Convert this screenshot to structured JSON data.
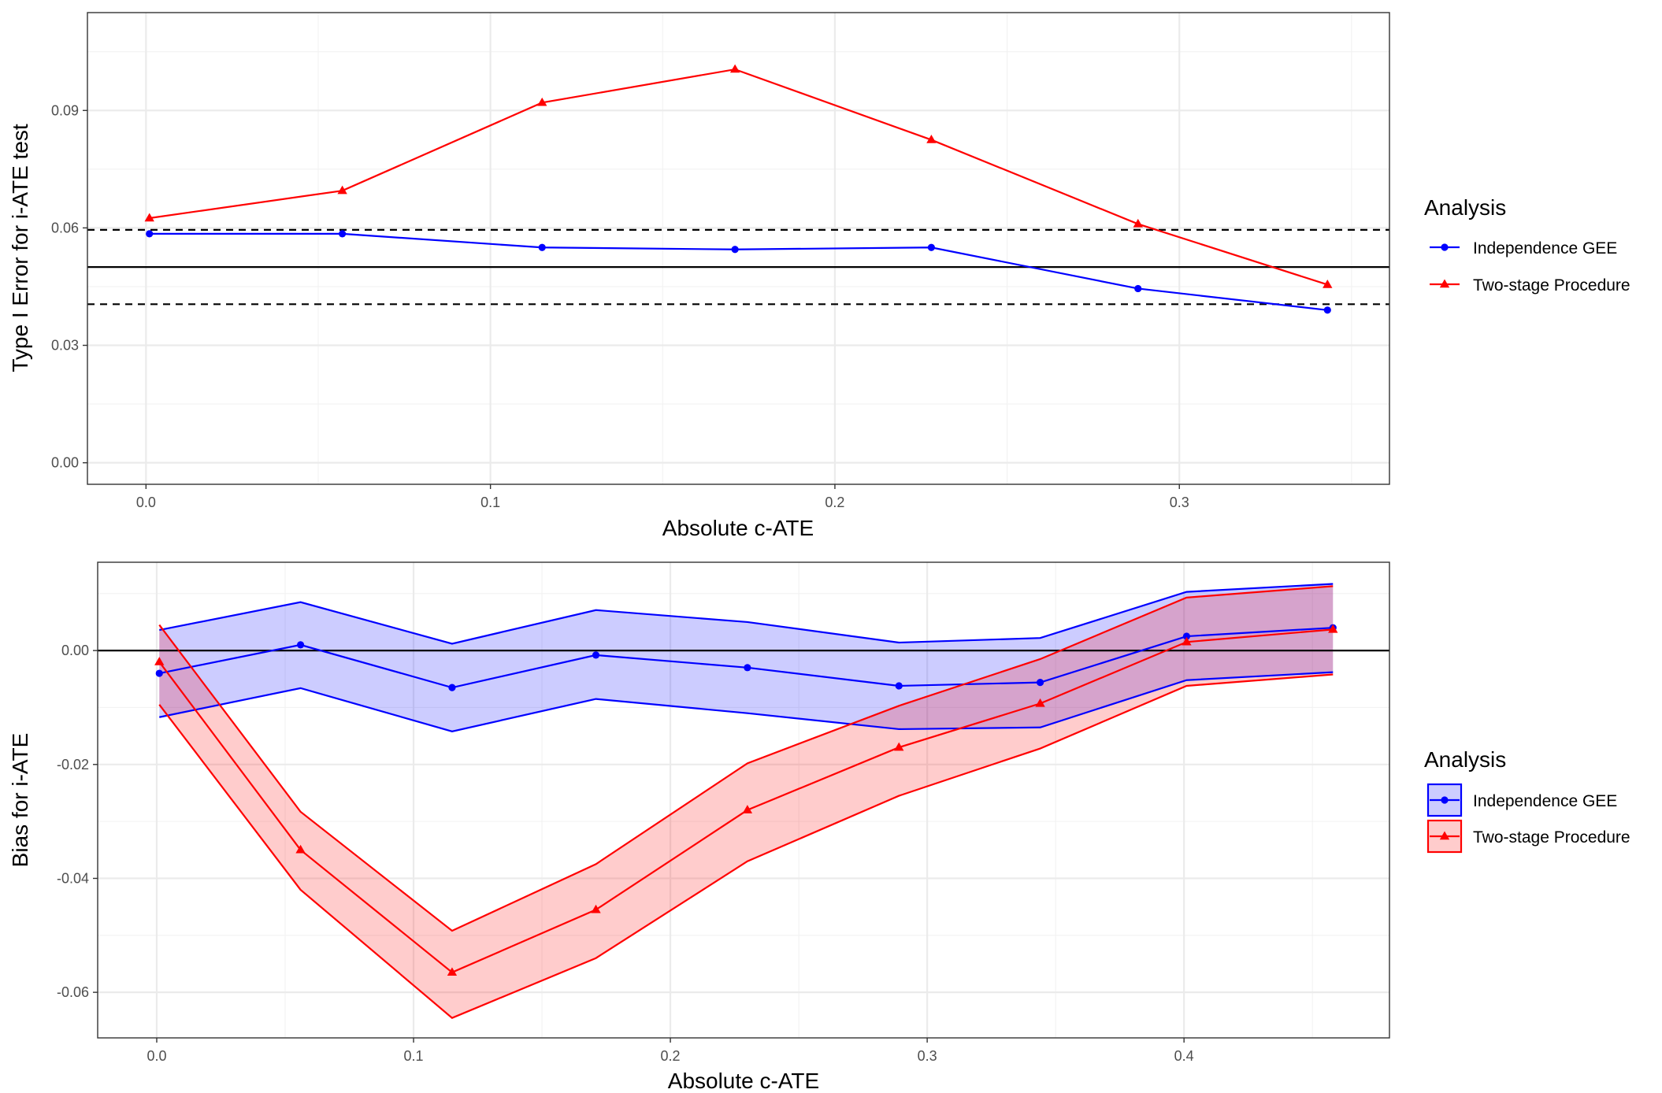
{
  "colors": {
    "independence": "#0000ff",
    "two_stage": "#ff0000",
    "reference": "#000000"
  },
  "chart_data": [
    {
      "type": "line",
      "xlabel": "Absolute c-ATE",
      "ylabel": "Type I Error for i-ATE test",
      "xlim": [
        -0.017,
        0.361
      ],
      "ylim": [
        -0.0055,
        0.115
      ],
      "x_ticks": [
        0.0,
        0.1,
        0.2,
        0.3
      ],
      "x_tick_labels": [
        "0.0",
        "0.1",
        "0.2",
        "0.3"
      ],
      "y_ticks": [
        0.0,
        0.03,
        0.06,
        0.09
      ],
      "y_tick_labels": [
        "0.00",
        "0.03",
        "0.06",
        "0.09"
      ],
      "reference_lines": [
        {
          "y": 0.05,
          "style": "solid"
        },
        {
          "y": 0.0595,
          "style": "dashed"
        },
        {
          "y": 0.0405,
          "style": "dashed"
        }
      ],
      "legend": {
        "title": "Analysis",
        "entries": [
          "Independence GEE",
          "Two-stage Procedure"
        ]
      },
      "series": [
        {
          "name": "Independence GEE",
          "marker": "circle",
          "x": [
            0.001,
            0.057,
            0.115,
            0.171,
            0.228,
            0.288,
            0.343
          ],
          "y": [
            0.0585,
            0.0585,
            0.055,
            0.0545,
            0.055,
            0.0445,
            0.039
          ]
        },
        {
          "name": "Two-stage Procedure",
          "marker": "triangle",
          "x": [
            0.001,
            0.057,
            0.115,
            0.171,
            0.228,
            0.288,
            0.343
          ],
          "y": [
            0.0625,
            0.0695,
            0.092,
            0.1005,
            0.0825,
            0.061,
            0.0455
          ]
        }
      ]
    },
    {
      "type": "area",
      "xlabel": "Absolute c-ATE",
      "ylabel": "Bias for i-ATE",
      "xlim": [
        -0.023,
        0.48
      ],
      "ylim": [
        -0.068,
        0.0155
      ],
      "x_ticks": [
        0.0,
        0.1,
        0.2,
        0.3,
        0.4
      ],
      "x_tick_labels": [
        "0.0",
        "0.1",
        "0.2",
        "0.3",
        "0.4"
      ],
      "y_ticks": [
        -0.06,
        -0.04,
        -0.02,
        0.0
      ],
      "y_tick_labels": [
        "-0.06",
        "-0.04",
        "-0.02",
        "0.00"
      ],
      "reference_lines": [
        {
          "y": 0.0,
          "style": "solid"
        }
      ],
      "legend": {
        "title": "Analysis",
        "entries": [
          "Independence GEE",
          "Two-stage Procedure"
        ]
      },
      "series": [
        {
          "name": "Independence GEE",
          "marker": "circle",
          "x": [
            0.001,
            0.056,
            0.115,
            0.171,
            0.23,
            0.289,
            0.344,
            0.401,
            0.458
          ],
          "y": [
            -0.004,
            0.001,
            -0.0065,
            -0.0008,
            -0.003,
            -0.0062,
            -0.0056,
            0.0025,
            0.004
          ],
          "lower": [
            -0.0117,
            -0.0066,
            -0.0142,
            -0.0085,
            -0.011,
            -0.0138,
            -0.0135,
            -0.0052,
            -0.0038
          ],
          "upper": [
            0.0036,
            0.0085,
            0.0012,
            0.0071,
            0.005,
            0.0014,
            0.0022,
            0.0103,
            0.0117
          ]
        },
        {
          "name": "Two-stage Procedure",
          "marker": "triangle",
          "x": [
            0.001,
            0.056,
            0.115,
            0.171,
            0.23,
            0.289,
            0.344,
            0.401,
            0.458
          ],
          "y": [
            -0.002,
            -0.035,
            -0.0565,
            -0.0455,
            -0.028,
            -0.017,
            -0.0093,
            0.0015,
            0.0037
          ],
          "lower": [
            -0.0095,
            -0.042,
            -0.0645,
            -0.054,
            -0.037,
            -0.0255,
            -0.0172,
            -0.0062,
            -0.0042
          ],
          "upper": [
            0.0045,
            -0.0283,
            -0.0492,
            -0.0375,
            -0.0198,
            -0.0097,
            -0.0015,
            0.0093,
            0.0113
          ]
        }
      ]
    }
  ]
}
